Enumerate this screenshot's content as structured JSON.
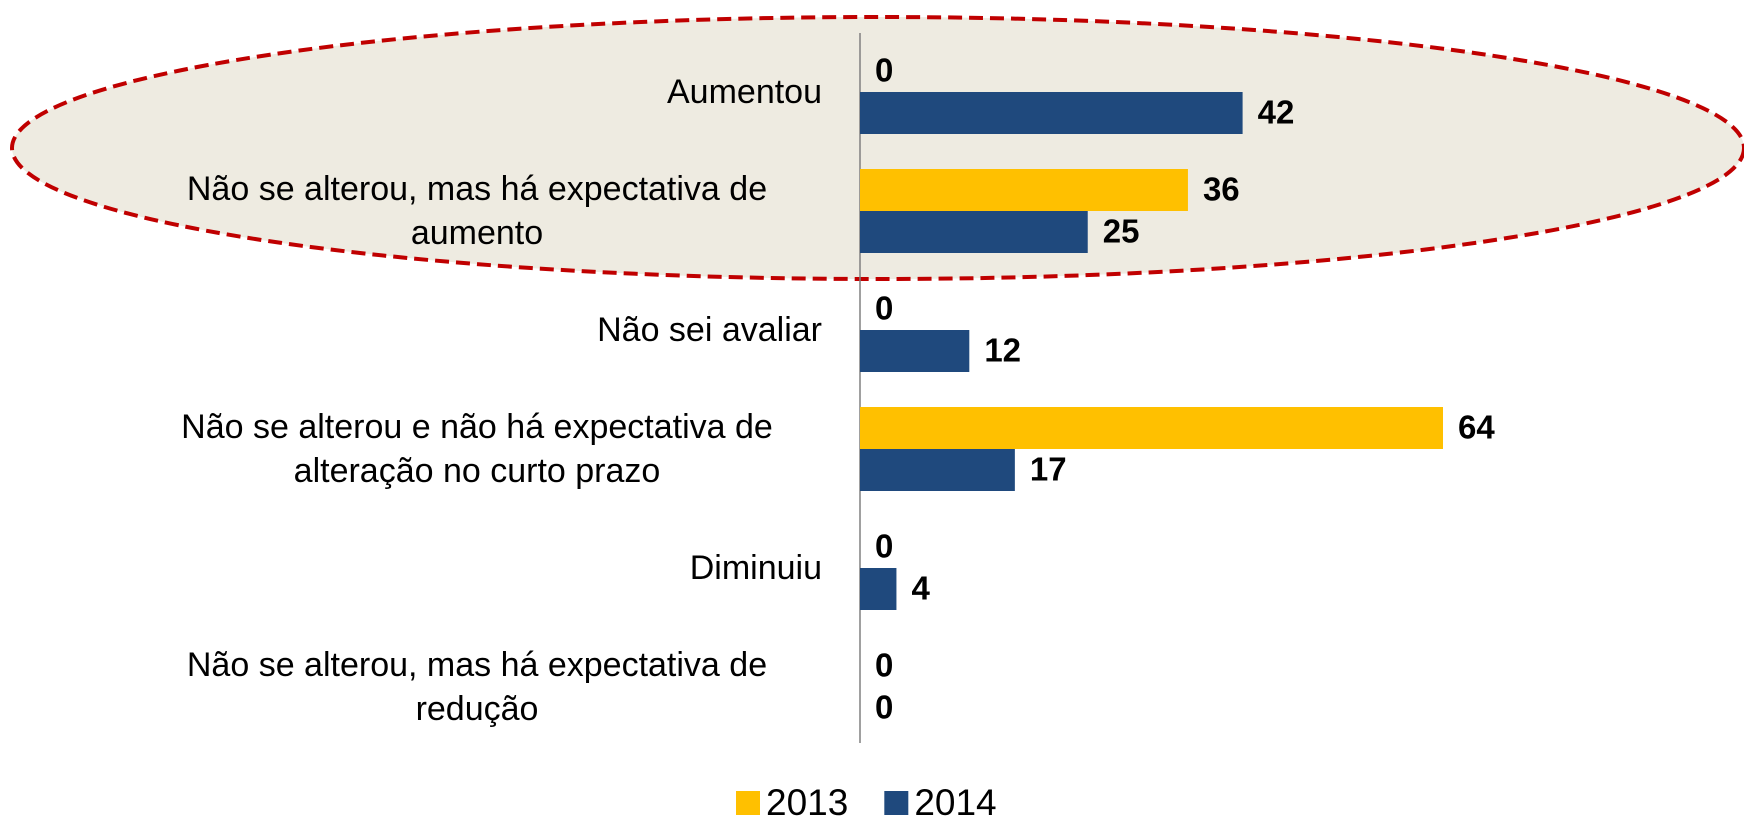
{
  "chart_data": {
    "type": "bar",
    "orientation": "horizontal",
    "categories": [
      "Aumentou",
      "Não se alterou, mas há expectativa de aumento",
      "Não sei avaliar",
      "Não se alterou e não há expectativa de alteração no curto prazo",
      "Diminuiu",
      "Não se alterou, mas há expectativa de redução"
    ],
    "series": [
      {
        "name": "2013",
        "color": "#ffc000",
        "values": [
          0,
          36,
          0,
          64,
          0,
          0
        ]
      },
      {
        "name": "2014",
        "color": "#1f497d",
        "values": [
          42,
          25,
          12,
          17,
          4,
          0
        ]
      }
    ],
    "legend": "bottom"
  }
}
